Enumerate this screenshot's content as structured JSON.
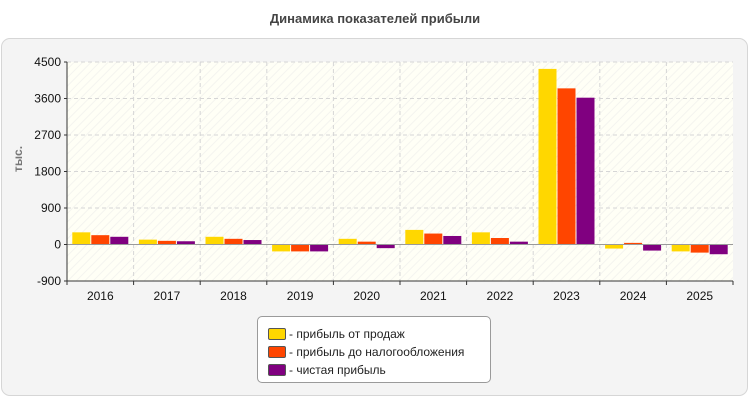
{
  "chart_data": {
    "type": "bar",
    "title": "Динамика показателей прибыли",
    "ylabel": "тыс.",
    "xlabel": "",
    "categories": [
      "2016",
      "2017",
      "2018",
      "2019",
      "2020",
      "2021",
      "2022",
      "2023",
      "2024",
      "2025"
    ],
    "series": [
      {
        "name": "- прибыль от продаж",
        "color": "#ffd700",
        "values": [
          300,
          120,
          190,
          -170,
          140,
          360,
          300,
          4330,
          -100,
          -170
        ]
      },
      {
        "name": "- прибыль до налогообложения",
        "color": "#ff4500",
        "values": [
          230,
          90,
          140,
          -170,
          70,
          270,
          160,
          3850,
          40,
          -200
        ]
      },
      {
        "name": "- чистая прибыль",
        "color": "#800080",
        "values": [
          190,
          80,
          110,
          -170,
          -90,
          210,
          70,
          3620,
          -150,
          -240
        ]
      }
    ],
    "ylim": [
      -900,
      4500
    ],
    "yticks": [
      "4500",
      "3600",
      "2700",
      "1800",
      "900",
      "0",
      "-900"
    ],
    "grid": true,
    "legend_position": "bottom"
  }
}
